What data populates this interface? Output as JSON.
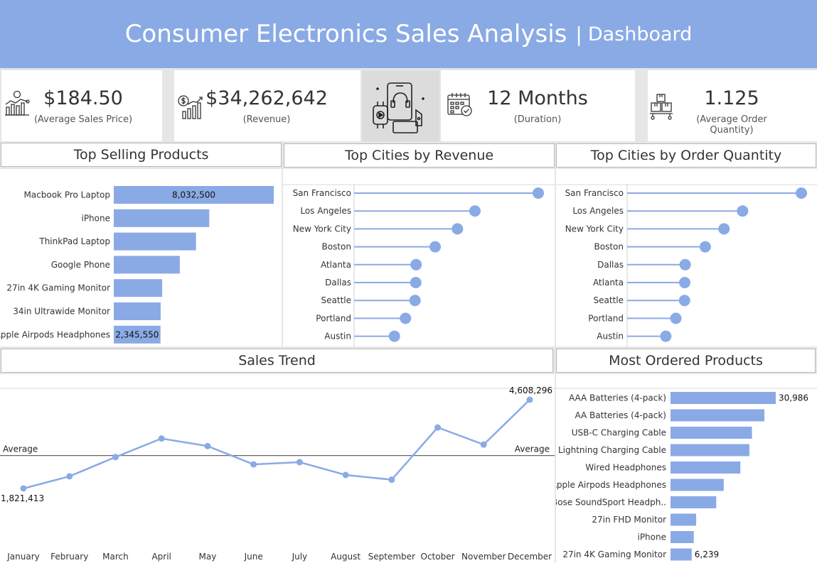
{
  "header": {
    "title": "Consumer Electronics Sales Analysis",
    "separator": "|",
    "subtitle": "Dashboard"
  },
  "kpis": [
    {
      "value": "$184.50",
      "label": "(Average Sales Price)",
      "icon": "price-chart-icon"
    },
    {
      "value": "$34,262,642",
      "label": "(Revenue)",
      "icon": "revenue-chart-icon"
    },
    {
      "value": "12 Months",
      "label": "(Duration)",
      "icon": "calendar-icon"
    },
    {
      "value": "1.125",
      "label": "(Average Order Quantity)",
      "icon": "boxes-icon"
    }
  ],
  "colors": {
    "accent": "#8aaae5",
    "header_bg": "#8aaae5",
    "gray": "#dcdcdc",
    "text": "#333333"
  },
  "panels": {
    "top_selling": "Top Selling Products",
    "top_cities_revenue": "Top Cities by Revenue",
    "top_cities_quantity": "Top Cities by Order Quantity",
    "sales_trend": "Sales Trend",
    "most_ordered": "Most Ordered Products"
  },
  "chart_data": [
    {
      "id": "top_selling",
      "type": "bar",
      "orientation": "horizontal",
      "categories": [
        "Macbook Pro Laptop",
        "iPhone",
        "ThinkPad Laptop",
        "Google Phone",
        "27in 4K Gaming Monitor",
        "34in Ultrawide Monitor",
        "Apple Airpods Headphones"
      ],
      "values": [
        8032500,
        4794300,
        4127958,
        3317400,
        2429637,
        2352898,
        2345550
      ],
      "labels": [
        "8,032,500",
        "",
        "",
        "",
        "",
        "",
        "2,345,550"
      ],
      "xlim": [
        0,
        8032500
      ]
    },
    {
      "id": "top_cities_revenue",
      "type": "scatter",
      "style": "lollipop",
      "categories": [
        "San Francisco",
        "Los Angeles",
        "New York City",
        "Boston",
        "Atlanta",
        "Dallas",
        "Seattle",
        "Portland",
        "Austin"
      ],
      "values": [
        8262204,
        5421435,
        4635371,
        3637410,
        2779908,
        2767975,
        2733296,
        2305595,
        1809874
      ],
      "xlim": [
        0,
        8262204
      ]
    },
    {
      "id": "top_cities_quantity",
      "type": "scatter",
      "style": "lollipop",
      "categories": [
        "San Francisco",
        "Los Angeles",
        "New York City",
        "Boston",
        "Dallas",
        "Atlanta",
        "Seattle",
        "Portland",
        "Austin"
      ],
      "values": [
        50239,
        33289,
        27932,
        22528,
        16730,
        16602,
        16553,
        14053,
        11153
      ],
      "xlim": [
        0,
        50239
      ]
    },
    {
      "id": "sales_trend",
      "type": "line",
      "x": [
        "January",
        "February",
        "March",
        "April",
        "May",
        "June",
        "July",
        "August",
        "September",
        "October",
        "November",
        "December"
      ],
      "values": [
        1821413,
        2202000,
        2807000,
        3390000,
        3152000,
        2578000,
        2647000,
        2245000,
        2097000,
        3736000,
        3200000,
        4608296
      ],
      "labels": [
        "1,821,413",
        "",
        "",
        "",
        "",
        "",
        "",
        "",
        "",
        "",
        "",
        "4,608,296"
      ],
      "average": 2855220,
      "average_label": "Average",
      "ylim": [
        1500000,
        4800000
      ]
    },
    {
      "id": "most_ordered",
      "type": "bar",
      "orientation": "horizontal",
      "categories": [
        "AAA Batteries (4-pack)",
        "AA Batteries (4-pack)",
        "USB-C Charging Cable",
        "Lightning Charging Cable",
        "Wired Headphones",
        "Apple Airpods Headphones",
        "Bose SoundSport Headph..",
        "27in FHD Monitor",
        "iPhone",
        "27in 4K Gaming Monitor"
      ],
      "values": [
        30986,
        27635,
        23975,
        23217,
        20557,
        15661,
        13457,
        7550,
        6849,
        6239
      ],
      "labels": [
        "30,986",
        "",
        "",
        "",
        "",
        "",
        "",
        "",
        "",
        "6,239"
      ],
      "xlim": [
        0,
        30986
      ]
    }
  ]
}
